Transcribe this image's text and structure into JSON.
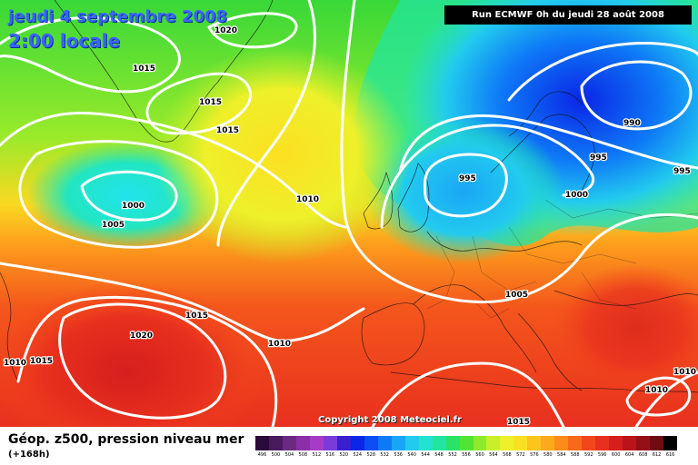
{
  "header": {
    "date": "jeudi 4 septembre 2008",
    "time": "2:00 locale",
    "run": "Run ECMWF 0h du jeudi 28 août 2008"
  },
  "copyright": "Copyright 2008 Meteociel.fr",
  "footer": {
    "title": "Géop. z500, pression niveau mer",
    "subtitle": "(+168h)"
  },
  "legend": {
    "values": [
      "496",
      "500",
      "504",
      "508",
      "512",
      "516",
      "520",
      "524",
      "528",
      "532",
      "536",
      "540",
      "544",
      "548",
      "552",
      "556",
      "560",
      "564",
      "568",
      "572",
      "576",
      "580",
      "584",
      "588",
      "592",
      "596",
      "600",
      "604",
      "608",
      "612",
      "616"
    ],
    "colors": [
      "#2a0a3a",
      "#4a1a5e",
      "#6a2a82",
      "#8a2fa8",
      "#a63bc8",
      "#7a3bd8",
      "#3a1fd0",
      "#0a26e6",
      "#0a4ef4",
      "#0e7af7",
      "#1aa6f6",
      "#22cbee",
      "#22e3d0",
      "#22e6a0",
      "#2ae266",
      "#52e434",
      "#8eea2a",
      "#c8f02a",
      "#eef02a",
      "#fbe022",
      "#fcc51e",
      "#fca91c",
      "#fb8c1a",
      "#f86a1a",
      "#f2461c",
      "#e8301e",
      "#d61e1e",
      "#b8141a",
      "#921016",
      "#6e0c12",
      "#000000"
    ]
  },
  "isobar_labels": [
    "1020",
    "1015",
    "1015",
    "1015",
    "1000",
    "1005",
    "1010",
    "995",
    "990",
    "995",
    "995",
    "1000",
    "1005",
    "1015",
    "1020",
    "1010",
    "1010",
    "1015",
    "1010",
    "1010",
    "1015"
  ]
}
